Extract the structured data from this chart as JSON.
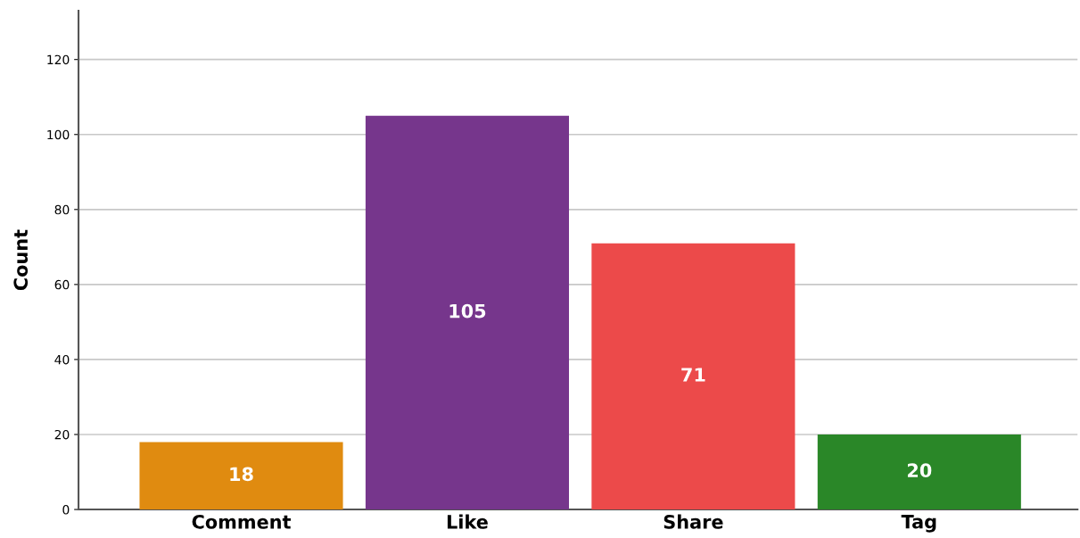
{
  "chart_data": {
    "type": "bar",
    "ylabel": "Count",
    "categories": [
      "Comment",
      "Like",
      "Share",
      "Tag"
    ],
    "values": [
      18,
      105,
      71,
      20
    ],
    "colors": [
      "#e08b10",
      "#76368c",
      "#ec4a4a",
      "#2a8728"
    ],
    "ylim": [
      0,
      133
    ],
    "yticks": [
      0,
      20,
      40,
      60,
      80,
      100,
      120
    ],
    "grid": "y",
    "data_labels": true
  }
}
